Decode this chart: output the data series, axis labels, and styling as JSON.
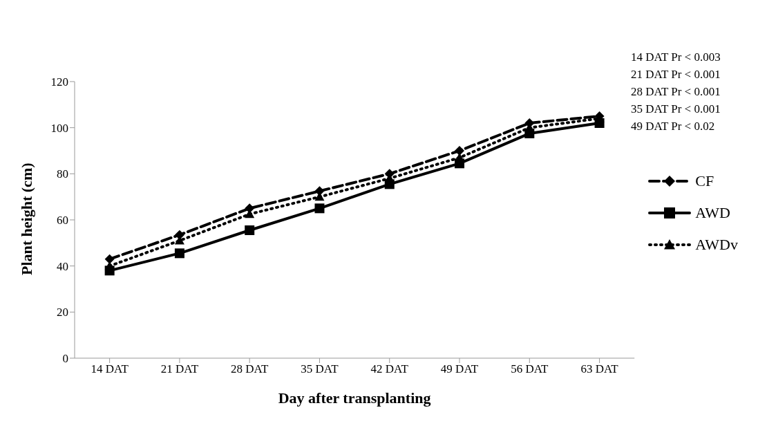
{
  "chart_data": {
    "type": "line",
    "xlabel": "Day after transplanting",
    "ylabel": "Plant height (cm)",
    "categories": [
      "14 DAT",
      "21 DAT",
      "28 DAT",
      "35 DAT",
      "42 DAT",
      "49 DAT",
      "56 DAT",
      "63 DAT"
    ],
    "series": [
      {
        "name": "CF",
        "color": "#000000",
        "marker": "diamond",
        "line_style": "dashed",
        "values": [
          43,
          53.5,
          65,
          72.5,
          80,
          90,
          102,
          105
        ]
      },
      {
        "name": "AWD",
        "color": "#000000",
        "marker": "square",
        "line_style": "solid",
        "values": [
          38,
          45.5,
          55.5,
          65,
          75.5,
          84.5,
          97.5,
          102
        ]
      },
      {
        "name": "AWDv",
        "color": "#000000",
        "marker": "triangle",
        "line_style": "dotted",
        "values": [
          40,
          51,
          62.5,
          70,
          78,
          87,
          100,
          104
        ]
      }
    ],
    "ylim": [
      0,
      120
    ],
    "yticks": [
      0,
      20,
      40,
      60,
      80,
      100,
      120
    ],
    "grid": false,
    "legend": "right",
    "annotations": [
      "14 DAT Pr < 0.003",
      "21 DAT Pr < 0.001",
      "28 DAT Pr < 0.001",
      "35 DAT Pr < 0.001",
      "49 DAT Pr < 0.02"
    ]
  }
}
